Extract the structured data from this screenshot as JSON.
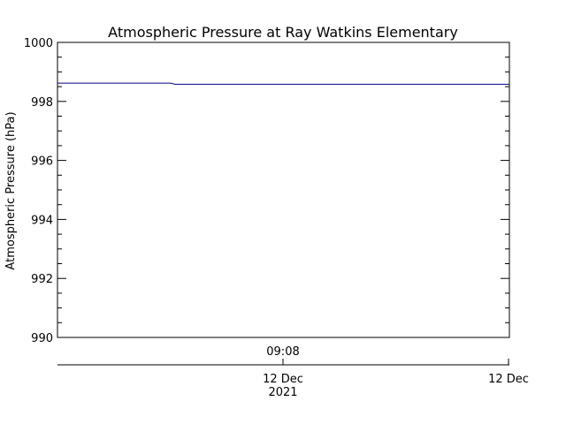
{
  "chart_data": {
    "type": "line",
    "title": "Atmospheric Pressure at Ray Watkins Elementary",
    "xlabel": "",
    "ylabel": "Atmospheric Pressure (hPa)",
    "ylim": [
      990,
      1000
    ],
    "y_major_ticks": [
      990,
      992,
      994,
      996,
      998,
      1000
    ],
    "y_minor_step": 0.5,
    "grid": false,
    "legend": "none",
    "x_axis": {
      "time_axis_label": "09:08",
      "date_axis_labels": [
        {
          "line1": "12 Dec",
          "line2": "2021"
        },
        {
          "line1": "12 Dec",
          "line2": ""
        }
      ]
    },
    "series": [
      {
        "color": "#00008b",
        "x": [
          0.0,
          0.25,
          0.26,
          1.0
        ],
        "y": [
          998.62,
          998.62,
          998.58,
          998.58
        ]
      }
    ]
  }
}
